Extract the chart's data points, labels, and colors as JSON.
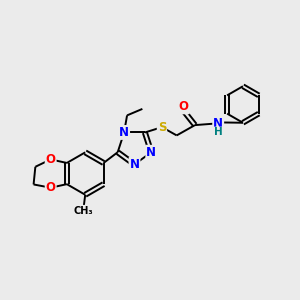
{
  "background_color": "#ebebeb",
  "bond_color": "#000000",
  "atom_colors": {
    "N": "#0000ff",
    "O": "#ff0000",
    "S": "#ccaa00",
    "C": "#000000",
    "H": "#008080"
  },
  "figsize": [
    3.0,
    3.0
  ],
  "dpi": 100
}
